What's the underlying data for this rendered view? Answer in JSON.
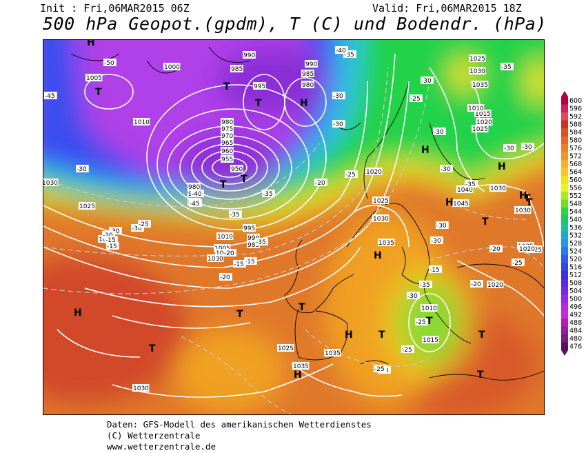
{
  "header": {
    "init": "Init : Fri,06MAR2015 06Z",
    "valid": "Valid: Fri,06MAR2015 18Z",
    "title": "500 hPa Geopot.(gpdm), T (C) und Bodendr. (hPa)"
  },
  "footer": {
    "line1": "Daten: GFS-Modell des amerikanischen Wetterdienstes",
    "line2": "(C) Wetterzentrale",
    "line3": "www.wetterzentrale.de"
  },
  "colors": {
    "deep_low": "#8b2fd8",
    "purple": "#b040e8",
    "blue": "#3a4df0",
    "cyan": "#33c0e8",
    "green": "#22d24a",
    "yellow": "#f0e21a",
    "orange": "#f0a020",
    "dark_orange": "#e07a1a",
    "red": "#d2482a",
    "isobar": "#ffffff",
    "isotherm": "#c8c8c8"
  },
  "scale": {
    "values": [
      "600",
      "596",
      "592",
      "588",
      "584",
      "580",
      "576",
      "572",
      "568",
      "564",
      "560",
      "556",
      "552",
      "548",
      "544",
      "540",
      "536",
      "532",
      "528",
      "524",
      "520",
      "516",
      "512",
      "508",
      "504",
      "500",
      "496",
      "492",
      "488",
      "484",
      "480",
      "476"
    ],
    "colors": [
      "#b4003c",
      "#d21e5a",
      "#e6465a",
      "#c8321e",
      "#dc5028",
      "#e66428",
      "#eb7d2d",
      "#f0962d",
      "#f5af28",
      "#f5c828",
      "#f5e11e",
      "#e6f51e",
      "#aaeb1e",
      "#6edc28",
      "#32d23c",
      "#1ec864",
      "#1ebe96",
      "#1eaad2",
      "#2896e6",
      "#2878f0",
      "#2d5af0",
      "#3246e6",
      "#3c32dc",
      "#5a28e6",
      "#7828eb",
      "#9628eb",
      "#b428e6",
      "#c828dc",
      "#b41eb4",
      "#961e96",
      "#781e82",
      "#5a145a"
    ]
  },
  "map_labels": {
    "pressure": [
      "1000",
      "1005",
      "990",
      "985",
      "990",
      "985",
      "980",
      "995",
      "980",
      "975",
      "970",
      "965",
      "960",
      "955",
      "950",
      "1010",
      "1030",
      "1025",
      "1020",
      "1025",
      "1030",
      "1035",
      "1015",
      "1010",
      "1005",
      "1000",
      "995",
      "990",
      "985",
      "980",
      "975",
      "970",
      "1010",
      "1015",
      "1020",
      "1025",
      "1025",
      "1030",
      "1020",
      "1025",
      "1015",
      "1010",
      "1020",
      "1025",
      "1030",
      "1035",
      "1040",
      "1045",
      "1030",
      "1035",
      "1030",
      "1035",
      "1025",
      "1030"
    ],
    "temperature": [
      "-45",
      "-35",
      "-35",
      "-30",
      "-30",
      "-30",
      "-35",
      "-40",
      "-35",
      "-30",
      "-25",
      "-20",
      "-25",
      "-20",
      "-15",
      "-15",
      "-20",
      "-15",
      "-20",
      "-15",
      "-25",
      "-20",
      "-25",
      "-25",
      "-30",
      "-35",
      "-30",
      "-30",
      "-25",
      "-20",
      "-20",
      "-15",
      "-30",
      "-35",
      "-30",
      "-30",
      "-30",
      "-25",
      "-30",
      "-35",
      "-40",
      "-45",
      "-50",
      "-30"
    ],
    "markers": [
      "H",
      "T",
      "T",
      "T",
      "H",
      "T",
      "T",
      "H",
      "H",
      "T",
      "H",
      "H",
      "T",
      "H",
      "T",
      "T",
      "T",
      "H",
      "T",
      "T",
      "H",
      "T",
      "T",
      "T",
      "H"
    ]
  }
}
